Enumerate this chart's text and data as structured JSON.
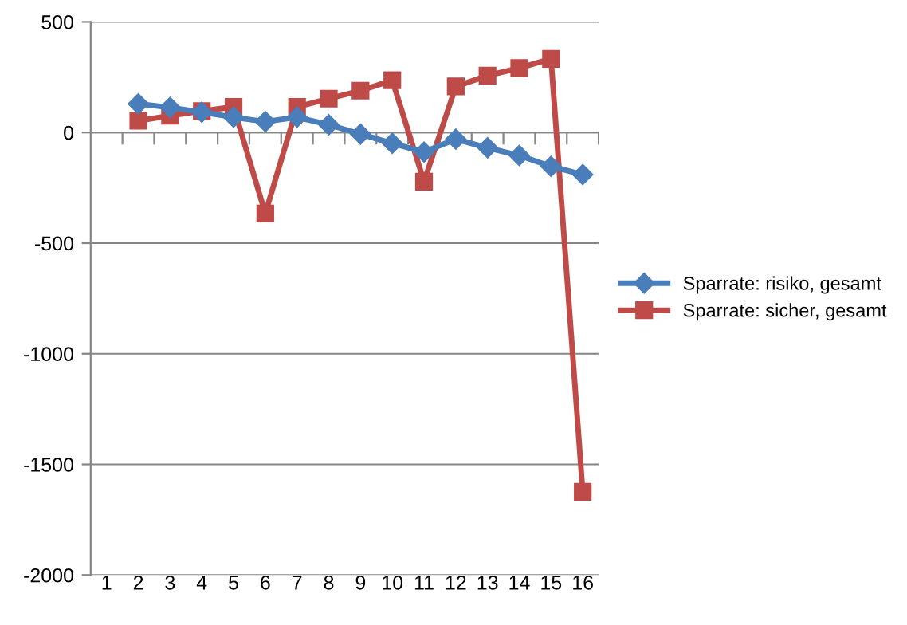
{
  "chart_data": {
    "type": "line",
    "categories": [
      "1",
      "2",
      "3",
      "4",
      "5",
      "6",
      "7",
      "8",
      "9",
      "10",
      "11",
      "12",
      "13",
      "14",
      "15",
      "16"
    ],
    "series": [
      {
        "name": "Sparrate: risiko, gesamt",
        "color": "#4a7ebb",
        "marker": "diamond",
        "values": [
          null,
          130,
          113,
          92,
          69,
          49,
          69,
          35,
          -7,
          -49,
          -88,
          -30,
          -69,
          -104,
          -153,
          -190
        ]
      },
      {
        "name": "Sparrate: sicher, gesamt",
        "color": "#be4b48",
        "marker": "square",
        "values": [
          null,
          53,
          76,
          97,
          116,
          -366,
          116,
          153,
          189,
          236,
          -222,
          208,
          257,
          291,
          333,
          -1624
        ]
      }
    ],
    "ylim": [
      -2000,
      500
    ],
    "yticks": [
      -2000,
      -1500,
      -1000,
      -500,
      0,
      500
    ],
    "grid": "y",
    "legend": "right"
  }
}
